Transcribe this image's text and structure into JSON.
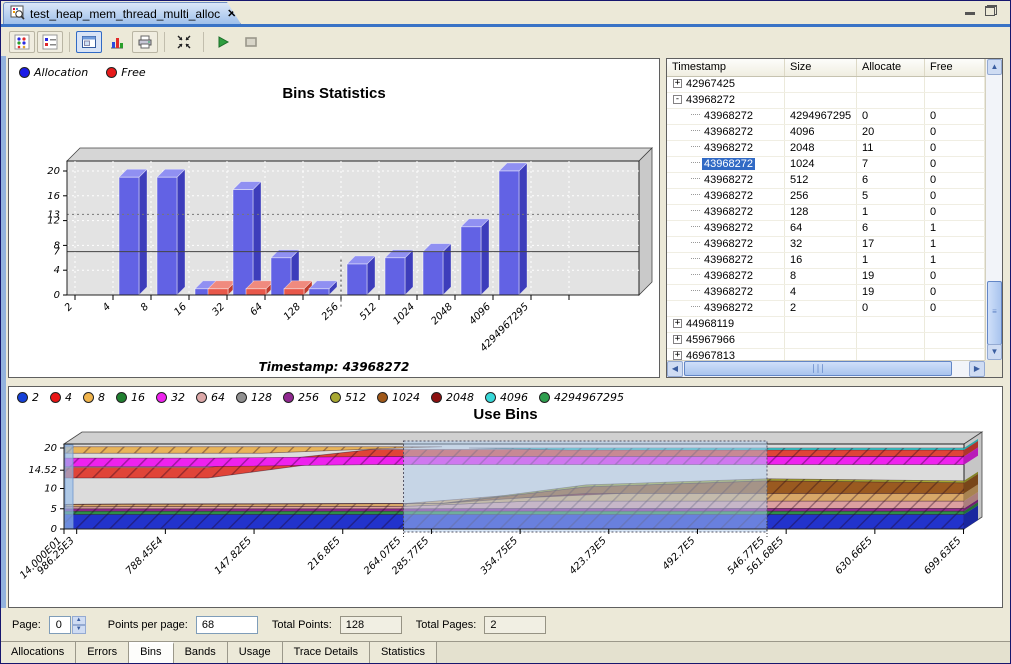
{
  "colors": {
    "accent": "#316ac5",
    "plot_bg": "#e3e3e3",
    "beige": "#ece9d8"
  },
  "window": {
    "tab_title": "test_heap_mem_thread_multi_alloc",
    "close_glyph": "✕"
  },
  "toolbar": {
    "icons": [
      "allocation-grid-icon",
      "event-list-icon",
      "overview-mode-icon",
      "chart-mode-icon",
      "print-icon",
      "fit-window-icon",
      "resume-icon",
      "snapshot-icon"
    ]
  },
  "bins_table": {
    "columns": [
      "Timestamp",
      "Size",
      "Allocate",
      "Free"
    ],
    "rows": [
      {
        "level": 0,
        "expand": "+",
        "timestamp": "42967425",
        "size": "",
        "allocate": "",
        "free": ""
      },
      {
        "level": 0,
        "expand": "-",
        "timestamp": "43968272",
        "size": "",
        "allocate": "",
        "free": ""
      },
      {
        "level": 1,
        "timestamp": "43968272",
        "size": "4294967295",
        "allocate": "0",
        "free": "0"
      },
      {
        "level": 1,
        "timestamp": "43968272",
        "size": "4096",
        "allocate": "20",
        "free": "0"
      },
      {
        "level": 1,
        "timestamp": "43968272",
        "size": "2048",
        "allocate": "11",
        "free": "0"
      },
      {
        "level": 1,
        "timestamp": "43968272",
        "size": "1024",
        "allocate": "7",
        "free": "0",
        "selected": true
      },
      {
        "level": 1,
        "timestamp": "43968272",
        "size": "512",
        "allocate": "6",
        "free": "0"
      },
      {
        "level": 1,
        "timestamp": "43968272",
        "size": "256",
        "allocate": "5",
        "free": "0"
      },
      {
        "level": 1,
        "timestamp": "43968272",
        "size": "128",
        "allocate": "1",
        "free": "0"
      },
      {
        "level": 1,
        "timestamp": "43968272",
        "size": "64",
        "allocate": "6",
        "free": "1"
      },
      {
        "level": 1,
        "timestamp": "43968272",
        "size": "32",
        "allocate": "17",
        "free": "1"
      },
      {
        "level": 1,
        "timestamp": "43968272",
        "size": "16",
        "allocate": "1",
        "free": "1"
      },
      {
        "level": 1,
        "timestamp": "43968272",
        "size": "8",
        "allocate": "19",
        "free": "0"
      },
      {
        "level": 1,
        "timestamp": "43968272",
        "size": "4",
        "allocate": "19",
        "free": "0"
      },
      {
        "level": 1,
        "timestamp": "43968272",
        "size": "2",
        "allocate": "0",
        "free": "0"
      },
      {
        "level": 0,
        "expand": "+",
        "timestamp": "44968119",
        "size": "",
        "allocate": "",
        "free": ""
      },
      {
        "level": 0,
        "expand": "+",
        "timestamp": "45967966",
        "size": "",
        "allocate": "",
        "free": ""
      },
      {
        "level": 0,
        "expand": "+",
        "timestamp": "46967813",
        "size": "",
        "allocate": "",
        "free": ""
      }
    ]
  },
  "pager": {
    "page_label": "Page:",
    "page_value": "0",
    "points_per_page_label": "Points per page:",
    "points_per_page_value": "68",
    "total_points_label": "Total Points:",
    "total_points_value": "128",
    "total_pages_label": "Total Pages:",
    "total_pages_value": "2"
  },
  "bottom_tabs": {
    "items": [
      "Allocations",
      "Errors",
      "Bins",
      "Bands",
      "Usage",
      "Trace Details",
      "Statistics"
    ],
    "active": "Bins"
  },
  "chart_data": [
    {
      "type": "bar",
      "title": "Bins Statistics",
      "caption": "Timestamp: 43968272",
      "categories": [
        "2",
        "4",
        "8",
        "16",
        "32",
        "64",
        "128",
        "256",
        "512",
        "1024",
        "2048",
        "4096",
        "4294967295"
      ],
      "series": [
        {
          "name": "Allocation",
          "color": "#1a1ae6",
          "values": [
            0,
            19,
            19,
            1,
            17,
            6,
            1,
            5,
            6,
            7,
            11,
            20,
            0
          ]
        },
        {
          "name": "Free",
          "color": "#e61a1a",
          "values": [
            0,
            0,
            0,
            1,
            1,
            1,
            0,
            0,
            0,
            0,
            0,
            0,
            0
          ]
        }
      ],
      "ylim": [
        0,
        20
      ],
      "yticks": [
        0,
        4,
        8,
        12,
        16,
        20
      ],
      "ymarkers": [
        {
          "value": 7,
          "style": "solid"
        },
        {
          "value": 13,
          "style": "dotted"
        }
      ],
      "xmarker_category_index": 7,
      "legend_position": "top-left",
      "grid": true
    },
    {
      "type": "area",
      "title": "Use Bins",
      "legend": [
        {
          "label": "2",
          "color": "#1540d8"
        },
        {
          "label": "4",
          "color": "#e81414"
        },
        {
          "label": "8",
          "color": "#f0b44c"
        },
        {
          "label": "16",
          "color": "#208030"
        },
        {
          "label": "32",
          "color": "#ee22ee"
        },
        {
          "label": "64",
          "color": "#dca8a8"
        },
        {
          "label": "128",
          "color": "#909090"
        },
        {
          "label": "256",
          "color": "#902890"
        },
        {
          "label": "512",
          "color": "#a8a832"
        },
        {
          "label": "1024",
          "color": "#a05818"
        },
        {
          "label": "2048",
          "color": "#8c1010"
        },
        {
          "label": "4096",
          "color": "#38d8d8"
        },
        {
          "label": "4294967295",
          "color": "#2e9e4e"
        }
      ],
      "ylim": [
        0,
        20
      ],
      "yticks": [
        {
          "value": 0,
          "label": "0"
        },
        {
          "value": 5,
          "label": "5"
        },
        {
          "value": 10,
          "label": "10"
        },
        {
          "value": 14.52,
          "label": "14.52"
        },
        {
          "value": 20,
          "label": "20"
        }
      ],
      "xmax": 70000000,
      "xticks": [
        {
          "value": 140,
          "label": "14.000E01"
        },
        {
          "value": 986250,
          "label": "986.25E3"
        },
        {
          "value": 7884500,
          "label": "788.45E4"
        },
        {
          "value": 14782000,
          "label": "147.82E5"
        },
        {
          "value": 21680000,
          "label": "216.8E5"
        },
        {
          "value": 28577000,
          "label": "285.77E5"
        },
        {
          "value": 35475000,
          "label": "354.75E5"
        },
        {
          "value": 42373000,
          "label": "423.73E5"
        },
        {
          "value": 49270000,
          "label": "492.7E5"
        },
        {
          "value": 56168000,
          "label": "561.68E5"
        },
        {
          "value": 63066000,
          "label": "630.66E5"
        },
        {
          "value": 69963000,
          "label": "699.63E5"
        }
      ],
      "selection": {
        "from": 26407000,
        "from_label": "264.07E5",
        "to": 54677000,
        "to_label": "546.77E5"
      },
      "bands": [
        {
          "bin": "2",
          "color": "#2233cc",
          "points": [
            [
              0,
              0,
              3.6
            ],
            [
              1,
              0,
              3.6
            ]
          ]
        },
        {
          "bin": "16",
          "color": "#2e8e46",
          "points": [
            [
              0,
              3.6,
              4.4
            ],
            [
              1,
              3.6,
              4.4
            ]
          ]
        },
        {
          "bin": "256",
          "color": "#902890",
          "points": [
            [
              0,
              4.4,
              5.0
            ],
            [
              0.38,
              4.4,
              5.0
            ],
            [
              0.52,
              4.4,
              5.1
            ],
            [
              1,
              4.4,
              5.1
            ]
          ]
        },
        {
          "bin": "64",
          "color": "#dca0a0",
          "points": [
            [
              0,
              5.0,
              5.5
            ],
            [
              0.38,
              5.0,
              5.6
            ],
            [
              0.52,
              5.1,
              6.9
            ],
            [
              1,
              5.1,
              6.9
            ]
          ]
        },
        {
          "bin": "8",
          "color": "#d8a868",
          "points": [
            [
              0,
              5.5,
              6.1
            ],
            [
              0.38,
              5.6,
              6.3
            ],
            [
              0.52,
              6.9,
              8.8
            ],
            [
              1,
              6.9,
              8.8
            ]
          ]
        },
        {
          "bin": "2048",
          "color": "#8c2018",
          "points": [
            [
              0.5,
              7.6,
              7.6
            ],
            [
              0.62,
              8.8,
              9.6
            ],
            [
              0.75,
              10.8,
              11.6
            ],
            [
              0.85,
              11.2,
              11.2
            ],
            [
              1,
              11.2,
              11.2
            ]
          ]
        },
        {
          "bin": "1024",
          "color": "#9a5a20",
          "points": [
            [
              0,
              6.1,
              6.1
            ],
            [
              0.42,
              6.3,
              6.3
            ],
            [
              0.58,
              8.8,
              10.4
            ],
            [
              0.78,
              8.8,
              11.9
            ],
            [
              1,
              8.8,
              11.4
            ]
          ]
        },
        {
          "bin": "512",
          "color": "#a8a832",
          "points": [
            [
              0,
              6.1,
              6.1
            ],
            [
              0.42,
              6.3,
              6.3
            ],
            [
              0.58,
              10.4,
              10.9
            ],
            [
              0.78,
              11.9,
              12.4
            ],
            [
              1,
              11.4,
              11.9
            ]
          ]
        },
        {
          "bin": "4",
          "color": "#e04438",
          "points": [
            [
              0,
              12.6,
              15.2
            ],
            [
              0.16,
              12.6,
              15.2
            ],
            [
              0.34,
              17.9,
              19.6
            ],
            [
              1,
              17.9,
              19.6
            ]
          ]
        },
        {
          "bin": "32",
          "color": "#ee22ee",
          "points": [
            [
              0,
              15.4,
              17.5
            ],
            [
              0.16,
              15.4,
              17.5
            ],
            [
              0.34,
              15.9,
              17.9
            ],
            [
              1,
              15.9,
              17.9
            ]
          ]
        },
        {
          "bin": "8",
          "color": "#e8b45a",
          "points": [
            [
              0,
              18.7,
              20.3
            ],
            [
              0.22,
              18.7,
              20.3
            ],
            [
              0.36,
              19.9,
              20.3
            ],
            [
              0.42,
              20.3,
              20.3
            ]
          ]
        },
        {
          "bin": "4096",
          "color": "#3cd8d8",
          "points": [
            [
              0.45,
              20,
              20
            ],
            [
              0.56,
              19.5,
              20
            ],
            [
              1,
              19.5,
              20
            ]
          ]
        }
      ]
    }
  ]
}
